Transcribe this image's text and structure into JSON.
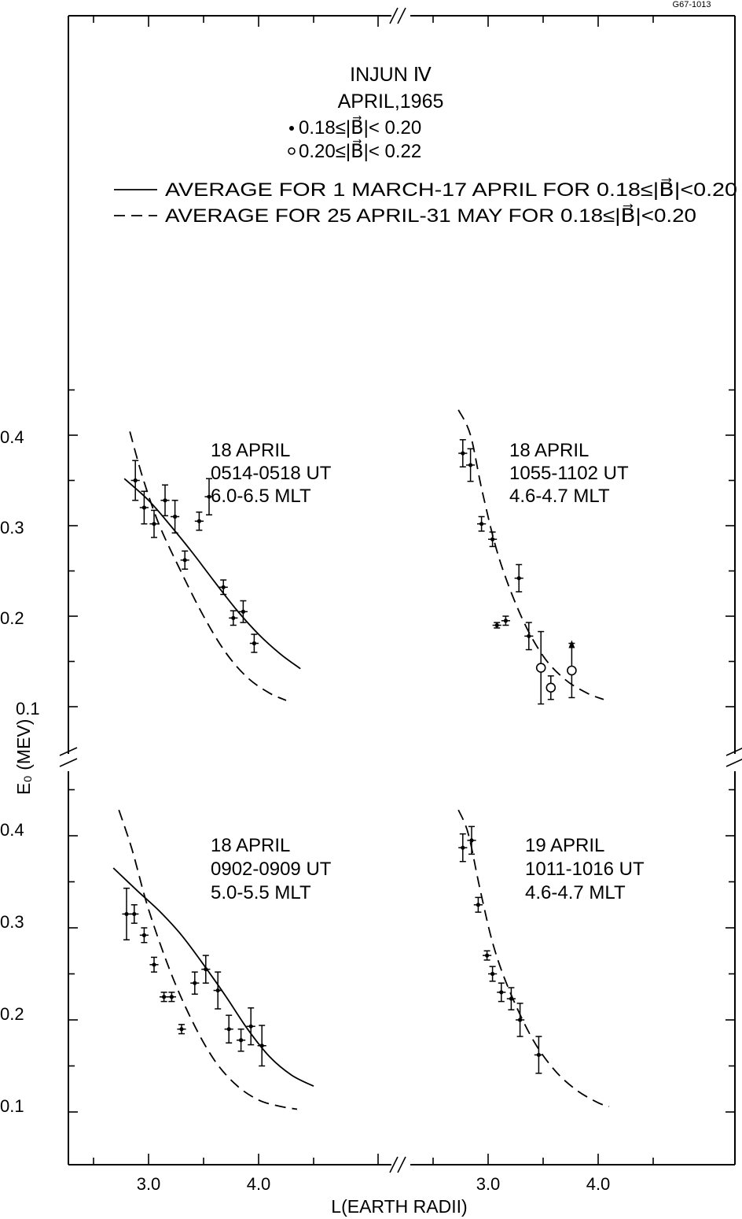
{
  "figure_id": "G67-1013",
  "header": {
    "title": "INJUN Ⅳ",
    "date": "APRIL,1965",
    "symbols": [
      {
        "marker": "dot",
        "label": "0.18≤|B⃗|< 0.20"
      },
      {
        "marker": "ring",
        "label": "0.20≤|B⃗|< 0.22"
      }
    ],
    "curves": [
      {
        "style": "solid",
        "label": "AVERAGE FOR  1 MARCH-17 APRIL FOR 0.18≤|B⃗|<0.20"
      },
      {
        "style": "dashed",
        "label": "AVERAGE FOR  25 APRIL-31 MAY FOR 0.18≤|B⃗|<0.20"
      }
    ]
  },
  "axes": {
    "xlabel": "L(EARTH RADII)",
    "ylabel": "E₀ (MEV)",
    "y_ticklabels": [
      "0.4",
      "0.3",
      "0.2",
      "0.1"
    ],
    "x_ticklabels": [
      "3.0",
      "4.0"
    ]
  },
  "chart_data": [
    {
      "type": "scatter",
      "label_lines": [
        "18 APRIL",
        "0514-0518 UT",
        "6.0-6.5 MLT"
      ],
      "xlim": [
        2.3,
        5.3
      ],
      "ylim": [
        0.05,
        0.45
      ],
      "points": [
        {
          "x": 2.88,
          "y": 0.35,
          "yerr": 0.022,
          "xerr": 0.04,
          "marker": "dot"
        },
        {
          "x": 2.96,
          "y": 0.32,
          "yerr": 0.018,
          "xerr": 0.04,
          "marker": "dot"
        },
        {
          "x": 3.05,
          "y": 0.302,
          "yerr": 0.015,
          "xerr": 0.04,
          "marker": "dot"
        },
        {
          "x": 3.15,
          "y": 0.328,
          "yerr": 0.017,
          "xerr": 0.04,
          "marker": "dot"
        },
        {
          "x": 3.24,
          "y": 0.31,
          "yerr": 0.018,
          "xerr": 0.04,
          "marker": "dot"
        },
        {
          "x": 3.33,
          "y": 0.262,
          "yerr": 0.01,
          "xerr": 0.04,
          "marker": "dot"
        },
        {
          "x": 3.46,
          "y": 0.305,
          "yerr": 0.01,
          "xerr": 0.04,
          "marker": "dot"
        },
        {
          "x": 3.55,
          "y": 0.332,
          "yerr": 0.02,
          "xerr": 0.04,
          "marker": "dot"
        },
        {
          "x": 3.68,
          "y": 0.232,
          "yerr": 0.008,
          "xerr": 0.04,
          "marker": "dot"
        },
        {
          "x": 3.77,
          "y": 0.198,
          "yerr": 0.008,
          "xerr": 0.04,
          "marker": "dot"
        },
        {
          "x": 3.86,
          "y": 0.205,
          "yerr": 0.012,
          "xerr": 0.04,
          "marker": "dot"
        },
        {
          "x": 3.96,
          "y": 0.17,
          "yerr": 0.01,
          "xerr": 0.04,
          "marker": "dot"
        }
      ],
      "solid_curve": {
        "x": [
          2.78,
          3.0,
          3.2,
          3.4,
          3.6,
          3.8,
          4.0,
          4.2,
          4.38
        ],
        "y": [
          0.352,
          0.328,
          0.3,
          0.27,
          0.238,
          0.207,
          0.18,
          0.158,
          0.142
        ]
      },
      "dashed_curve": {
        "x": [
          2.83,
          2.95,
          3.1,
          3.3,
          3.5,
          3.7,
          3.9,
          4.1,
          4.25
        ],
        "y": [
          0.404,
          0.352,
          0.3,
          0.248,
          0.2,
          0.16,
          0.132,
          0.115,
          0.107
        ]
      }
    },
    {
      "type": "scatter",
      "label_lines": [
        "18 APRIL",
        "1055-1102 UT",
        "4.6-4.7 MLT"
      ],
      "xlim": [
        1.6,
        4.6
      ],
      "ylim": [
        0.05,
        0.45
      ],
      "points": [
        {
          "x": 2.77,
          "y": 0.38,
          "yerr": 0.015,
          "xerr": 0.04,
          "marker": "dot"
        },
        {
          "x": 2.84,
          "y": 0.367,
          "yerr": 0.018,
          "xerr": 0.04,
          "marker": "dot"
        },
        {
          "x": 2.94,
          "y": 0.302,
          "yerr": 0.008,
          "xerr": 0.04,
          "marker": "dot"
        },
        {
          "x": 3.04,
          "y": 0.285,
          "yerr": 0.008,
          "xerr": 0.04,
          "marker": "dot"
        },
        {
          "x": 3.08,
          "y": 0.19,
          "yerr": 0.003,
          "xerr": 0.04,
          "marker": "dot"
        },
        {
          "x": 3.16,
          "y": 0.195,
          "yerr": 0.005,
          "xerr": 0.04,
          "marker": "dot"
        },
        {
          "x": 3.28,
          "y": 0.242,
          "yerr": 0.015,
          "xerr": 0.04,
          "marker": "dot"
        },
        {
          "x": 3.37,
          "y": 0.178,
          "yerr": 0.015,
          "xerr": 0.04,
          "marker": "dot"
        },
        {
          "x": 3.48,
          "y": 0.143,
          "yerr": 0.04,
          "xerr": 0.04,
          "marker": "ring"
        },
        {
          "x": 3.57,
          "y": 0.121,
          "yerr": 0.013,
          "xerr": 0.04,
          "marker": "ring"
        },
        {
          "x": 3.76,
          "y": 0.14,
          "yerr": 0.03,
          "xerr": 0.04,
          "marker": "ring",
          "arrow": "up"
        }
      ],
      "dashed_curve": {
        "x": [
          2.73,
          2.84,
          2.95,
          3.1,
          3.3,
          3.5,
          3.7,
          3.9,
          4.05
        ],
        "y": [
          0.428,
          0.4,
          0.336,
          0.264,
          0.2,
          0.156,
          0.13,
          0.115,
          0.108
        ]
      }
    },
    {
      "type": "scatter",
      "label_lines": [
        "18 APRIL",
        "0902-0909 UT",
        "5.0-5.5 MLT"
      ],
      "xlim": [
        2.3,
        5.3
      ],
      "ylim": [
        0.05,
        0.45
      ],
      "points": [
        {
          "x": 2.8,
          "y": 0.315,
          "yerr": 0.028,
          "xerr": 0.04,
          "marker": "dot"
        },
        {
          "x": 2.87,
          "y": 0.315,
          "yerr": 0.01,
          "xerr": 0.04,
          "marker": "dot"
        },
        {
          "x": 2.96,
          "y": 0.292,
          "yerr": 0.008,
          "xerr": 0.04,
          "marker": "dot"
        },
        {
          "x": 3.05,
          "y": 0.26,
          "yerr": 0.008,
          "xerr": 0.04,
          "marker": "dot"
        },
        {
          "x": 3.14,
          "y": 0.225,
          "yerr": 0.005,
          "xerr": 0.04,
          "marker": "dot"
        },
        {
          "x": 3.21,
          "y": 0.225,
          "yerr": 0.005,
          "xerr": 0.04,
          "marker": "dot"
        },
        {
          "x": 3.3,
          "y": 0.19,
          "yerr": 0.005,
          "xerr": 0.04,
          "marker": "dot"
        },
        {
          "x": 3.42,
          "y": 0.24,
          "yerr": 0.012,
          "xerr": 0.04,
          "marker": "dot"
        },
        {
          "x": 3.52,
          "y": 0.255,
          "yerr": 0.015,
          "xerr": 0.04,
          "marker": "dot"
        },
        {
          "x": 3.63,
          "y": 0.232,
          "yerr": 0.02,
          "xerr": 0.04,
          "marker": "dot"
        },
        {
          "x": 3.73,
          "y": 0.19,
          "yerr": 0.015,
          "xerr": 0.04,
          "marker": "dot"
        },
        {
          "x": 3.84,
          "y": 0.178,
          "yerr": 0.012,
          "xerr": 0.04,
          "marker": "dot"
        },
        {
          "x": 3.93,
          "y": 0.193,
          "yerr": 0.02,
          "xerr": 0.04,
          "marker": "dot"
        },
        {
          "x": 4.03,
          "y": 0.172,
          "yerr": 0.022,
          "xerr": 0.04,
          "marker": "dot"
        }
      ],
      "solid_curve": {
        "x": [
          2.68,
          2.9,
          3.1,
          3.3,
          3.5,
          3.7,
          3.9,
          4.1,
          4.3,
          4.5
        ],
        "y": [
          0.365,
          0.34,
          0.318,
          0.292,
          0.26,
          0.226,
          0.19,
          0.16,
          0.14,
          0.128
        ]
      },
      "dashed_curve": {
        "x": [
          2.73,
          2.85,
          3.0,
          3.2,
          3.4,
          3.6,
          3.8,
          4.0,
          4.2,
          4.35
        ],
        "y": [
          0.428,
          0.385,
          0.32,
          0.252,
          0.198,
          0.156,
          0.129,
          0.113,
          0.106,
          0.103
        ]
      }
    },
    {
      "type": "scatter",
      "label_lines": [
        "19 APRIL",
        "1011-1016 UT",
        "4.6-4.7 MLT"
      ],
      "xlim": [
        1.6,
        4.6
      ],
      "ylim": [
        0.05,
        0.45
      ],
      "points": [
        {
          "x": 2.77,
          "y": 0.387,
          "yerr": 0.015,
          "xerr": 0.04,
          "marker": "dot"
        },
        {
          "x": 2.85,
          "y": 0.395,
          "yerr": 0.015,
          "xerr": 0.04,
          "marker": "dot"
        },
        {
          "x": 2.91,
          "y": 0.325,
          "yerr": 0.008,
          "xerr": 0.04,
          "marker": "dot"
        },
        {
          "x": 2.99,
          "y": 0.27,
          "yerr": 0.005,
          "xerr": 0.04,
          "marker": "dot"
        },
        {
          "x": 3.04,
          "y": 0.25,
          "yerr": 0.008,
          "xerr": 0.04,
          "marker": "dot"
        },
        {
          "x": 3.12,
          "y": 0.23,
          "yerr": 0.01,
          "xerr": 0.04,
          "marker": "dot"
        },
        {
          "x": 3.21,
          "y": 0.223,
          "yerr": 0.012,
          "xerr": 0.04,
          "marker": "dot"
        },
        {
          "x": 3.29,
          "y": 0.2,
          "yerr": 0.018,
          "xerr": 0.04,
          "marker": "dot"
        },
        {
          "x": 3.46,
          "y": 0.162,
          "yerr": 0.02,
          "xerr": 0.04,
          "marker": "dot"
        }
      ],
      "dashed_curve": {
        "x": [
          2.73,
          2.82,
          2.93,
          3.05,
          3.2,
          3.4,
          3.6,
          3.8,
          4.0,
          4.1
        ],
        "y": [
          0.428,
          0.402,
          0.34,
          0.28,
          0.23,
          0.18,
          0.146,
          0.124,
          0.11,
          0.106
        ]
      }
    }
  ]
}
